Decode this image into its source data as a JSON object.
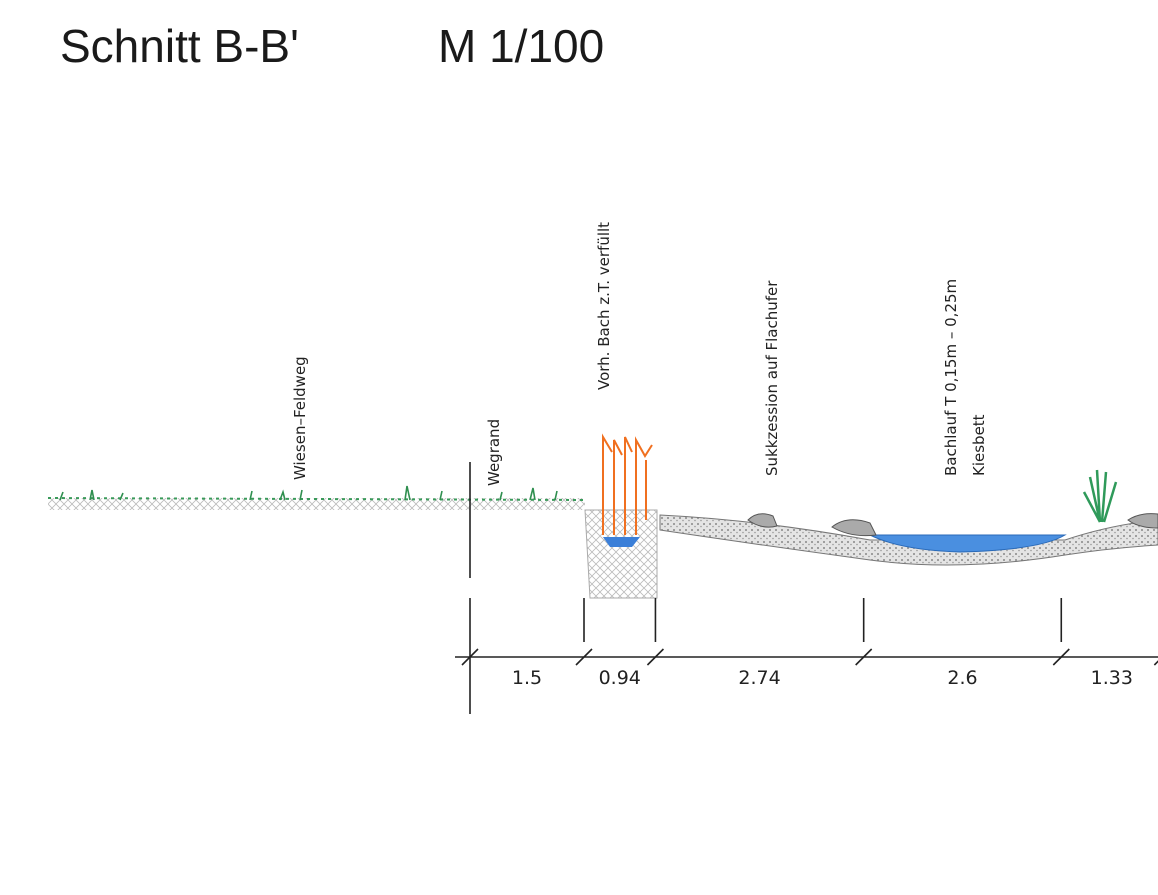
{
  "header": {
    "title": "Schnitt B-B'",
    "scale": "M  1/100"
  },
  "labels": [
    "Wiesen–Feldweg",
    "Wegrand",
    "Vorh.  Bach  z.T.  verfüllt",
    "Sukkzession  auf  Flachufer",
    "Bachlauf  T 0,15m  –  0,25m",
    "Kiesbett"
  ],
  "dimensions": [
    1.5,
    0.94,
    2.74,
    2.6,
    1.33
  ]
}
